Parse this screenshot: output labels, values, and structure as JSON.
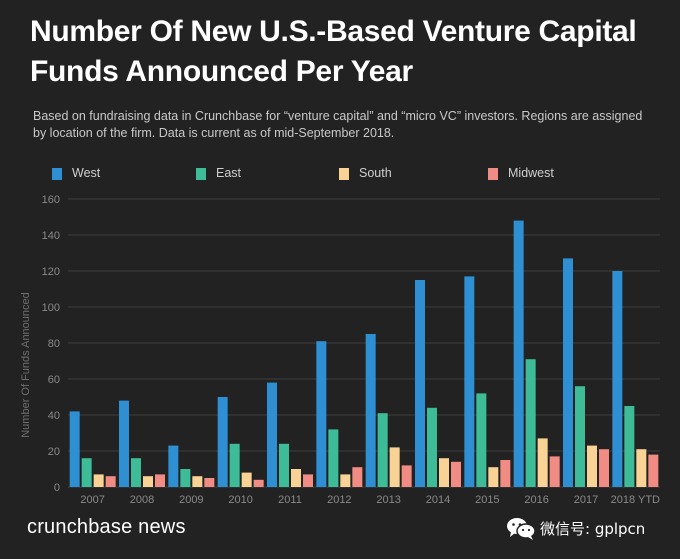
{
  "chart_data": {
    "type": "bar",
    "title": "Number Of New U.S.-Based Venture Capital Funds Announced Per Year",
    "subtitle": "Based on fundraising data in Crunchbase for “venture capital” and “micro VC” investors. Regions are assigned by location of the firm. Data is current as of mid-September 2018.",
    "ylabel": "Number Of Funds Announced",
    "xlabel": "",
    "ylim": [
      0,
      160
    ],
    "yticks": [
      0,
      20,
      40,
      60,
      80,
      100,
      120,
      140,
      160
    ],
    "grid": true,
    "legend_position": "top",
    "categories": [
      "2007",
      "2008",
      "2009",
      "2010",
      "2011",
      "2012",
      "2013",
      "2014",
      "2015",
      "2016",
      "2017",
      "2018 YTD"
    ],
    "series": [
      {
        "name": "West",
        "color": "#2f8fd3",
        "values": [
          42,
          48,
          23,
          50,
          58,
          81,
          85,
          115,
          117,
          148,
          127,
          120
        ]
      },
      {
        "name": "East",
        "color": "#3ebc97",
        "values": [
          16,
          16,
          10,
          24,
          24,
          32,
          41,
          44,
          52,
          71,
          56,
          45
        ]
      },
      {
        "name": "South",
        "color": "#f8d395",
        "values": [
          7,
          6,
          6,
          8,
          10,
          7,
          22,
          16,
          11,
          27,
          23,
          21
        ]
      },
      {
        "name": "Midwest",
        "color": "#f08c83",
        "values": [
          6,
          7,
          5,
          4,
          7,
          11,
          12,
          14,
          15,
          17,
          21,
          18
        ]
      }
    ]
  },
  "footer": {
    "brand": "crunchbase news",
    "wechat": "微信号: gplpcn",
    "wechat_icon": "wechat-icon"
  },
  "colors": {
    "background": "#222222",
    "grid": "#3d3d3d",
    "axis_text": "#8a8a8a"
  }
}
